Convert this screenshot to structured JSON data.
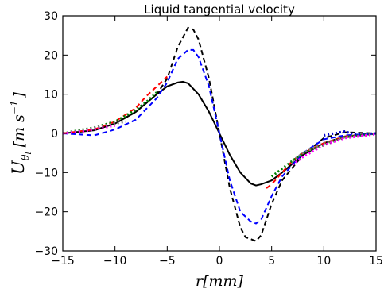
{
  "chart_data": {
    "type": "line",
    "title": "Liquid tangential velocity",
    "xlabel": "r[mm]",
    "ylabel": "U_θl [m s^-1]",
    "ylabel_parts": {
      "main": "U",
      "sub1": "θ",
      "sub2": "l",
      "bracket_open": "[",
      "units": "m s",
      "exp": "−1",
      "bracket_close": "]"
    },
    "xlim": [
      -15,
      15
    ],
    "ylim": [
      -30,
      30
    ],
    "xticks": [
      -15,
      -10,
      -5,
      0,
      5,
      10,
      15
    ],
    "xtick_labels": [
      "−15",
      "−10",
      "−5",
      "0",
      "5",
      "10",
      "15"
    ],
    "yticks": [
      -30,
      -20,
      -10,
      0,
      10,
      20,
      30
    ],
    "ytick_labels": [
      "−30",
      "−20",
      "−10",
      "0",
      "10",
      "20",
      "30"
    ],
    "grid": false,
    "series": [
      {
        "color": "#000000",
        "style": "solid",
        "x": [
          -15,
          -12,
          -10,
          -8,
          -6,
          -5,
          -4,
          -3.5,
          -3,
          -2,
          -1,
          0,
          1,
          2,
          3,
          3.5,
          4,
          5,
          6,
          8,
          10,
          12,
          15
        ],
        "y": [
          0,
          0.8,
          2.5,
          5.5,
          10,
          12,
          13,
          13.2,
          12.8,
          10,
          5.5,
          0,
          -5.5,
          -10,
          -12.8,
          -13.3,
          -13,
          -12,
          -10,
          -5.5,
          -2.5,
          -0.8,
          0
        ]
      },
      {
        "color": "#000000",
        "style": "dashed",
        "x": [
          -15,
          -12,
          -10,
          -8,
          -6,
          -5,
          -4,
          -3,
          -2.5,
          -2,
          -1,
          0,
          1,
          2,
          2.5,
          3,
          3.5,
          4,
          5,
          6,
          8,
          10,
          12,
          15
        ],
        "y": [
          0,
          0.8,
          2.5,
          5.5,
          10,
          14,
          22,
          27,
          26.5,
          24,
          14,
          0,
          -14,
          -24,
          -26.5,
          -27,
          -27.5,
          -26,
          -18,
          -12,
          -5.5,
          -1.2,
          0.3,
          0
        ]
      },
      {
        "color": "#0000ff",
        "style": "dashed",
        "x": [
          -15,
          -12,
          -10,
          -8,
          -6,
          -5,
          -4,
          -3,
          -2.5,
          -2,
          -1,
          0,
          1,
          2,
          3,
          3.5,
          4,
          5,
          6,
          8,
          10,
          12,
          15
        ],
        "y": [
          0,
          -0.5,
          1,
          3.5,
          9,
          13,
          19,
          21.3,
          21.3,
          19.5,
          12,
          0,
          -12,
          -20,
          -22.5,
          -23,
          -22,
          -16,
          -11,
          -5,
          -1.5,
          -0.5,
          0
        ]
      },
      {
        "color": "#ff0000",
        "style": "dashed",
        "x": [
          -15,
          -12,
          -10,
          -8,
          -7,
          -6,
          -5,
          4.5,
          5,
          6,
          7,
          8,
          10,
          12,
          15
        ],
        "y": [
          0,
          1,
          3,
          6.5,
          9.5,
          12,
          14.5,
          -14,
          -13,
          -10,
          -7,
          -5,
          -2.5,
          -0.8,
          0
        ]
      },
      {
        "color": "#008000",
        "style": "dotted",
        "x": [
          -15,
          -12,
          -10,
          -8,
          -7,
          -6,
          5,
          6,
          7,
          8,
          10,
          12,
          15
        ],
        "y": [
          0,
          1.5,
          3,
          6,
          8,
          10.5,
          -11,
          -9,
          -7,
          -5,
          -3,
          -1,
          0
        ]
      },
      {
        "color": "#808080",
        "style": "dotted",
        "x": [
          -15,
          -13,
          -12,
          -10,
          -9,
          7,
          8,
          10,
          12,
          15
        ],
        "y": [
          0,
          0.8,
          1.5,
          2.5,
          3,
          -7,
          -5,
          -2.5,
          -1,
          0
        ]
      },
      {
        "color": "#ff00ff",
        "style": "dotted",
        "x": [
          -15,
          -13,
          -12,
          -10,
          7,
          8,
          10,
          12,
          15
        ],
        "y": [
          0,
          0.5,
          1,
          2,
          -8,
          -6,
          -3,
          -1.2,
          -0.2
        ]
      },
      {
        "color": "#0000cc",
        "style": "dotted",
        "x": [
          10,
          11,
          12,
          13,
          15
        ],
        "y": [
          -0.5,
          0,
          0.5,
          -0.3,
          0
        ]
      }
    ]
  }
}
